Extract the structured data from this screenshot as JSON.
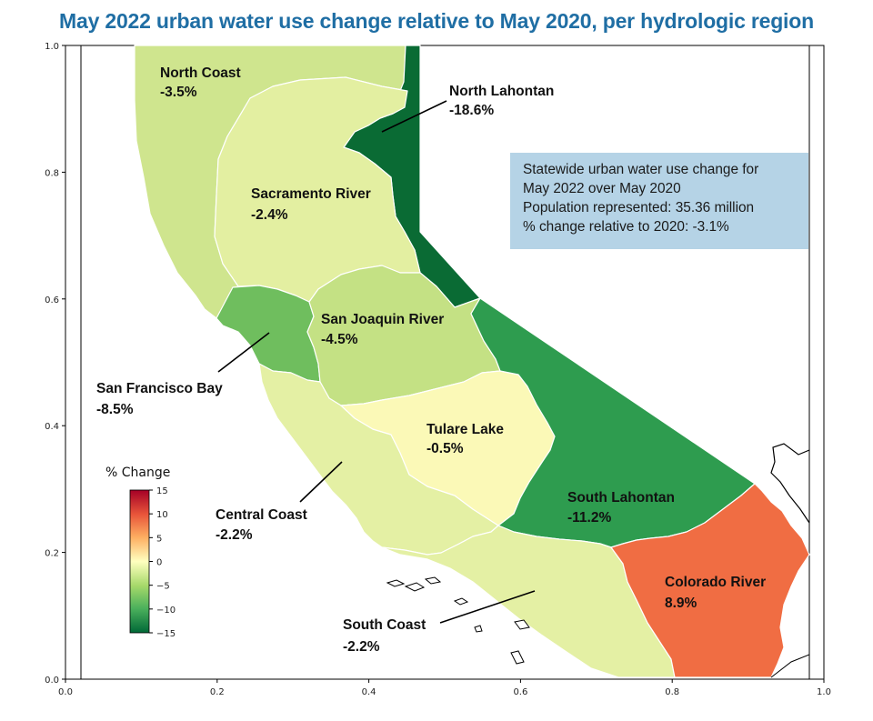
{
  "title": "May 2022 urban water use change relative to May 2020, per hydrologic region",
  "colors": {
    "title": "#1f6ea4",
    "infobox_bg": "#b5d3e6"
  },
  "infobox": {
    "line1": "Statewide urban water use change for",
    "line2": "May 2022 over May 2020",
    "line3": "Population represented: 35.36 million",
    "line4": "% change relative to 2020: -3.1%"
  },
  "chart_data": {
    "type": "choropleth",
    "xlim": [
      0.0,
      1.0
    ],
    "ylim": [
      0.0,
      1.0
    ],
    "x_ticks": [
      "0.0",
      "0.2",
      "0.4",
      "0.6",
      "0.8",
      "1.0"
    ],
    "y_ticks": [
      "0.0",
      "0.2",
      "0.4",
      "0.6",
      "0.8",
      "1.0"
    ],
    "regions": [
      {
        "name": "North Coast",
        "value": -3.5,
        "label": "-3.5%",
        "color": "#cfe58e"
      },
      {
        "name": "North Lahontan",
        "value": -18.6,
        "label": "-18.6%",
        "color": "#0a6b34"
      },
      {
        "name": "Sacramento River",
        "value": -2.4,
        "label": "-2.4%",
        "color": "#e3efa1"
      },
      {
        "name": "San Joaquin River",
        "value": -4.5,
        "label": "-4.5%",
        "color": "#c4e184"
      },
      {
        "name": "San Francisco Bay",
        "value": -8.5,
        "label": "-8.5%",
        "color": "#6fbe5e"
      },
      {
        "name": "Central Coast",
        "value": -2.2,
        "label": "-2.2%",
        "color": "#e4f0a4"
      },
      {
        "name": "Tulare Lake",
        "value": -0.5,
        "label": "-0.5%",
        "color": "#fbf9b7"
      },
      {
        "name": "South Lahontan",
        "value": -11.2,
        "label": "-11.2%",
        "color": "#2e9c4f"
      },
      {
        "name": "South Coast",
        "value": -2.2,
        "label": "-2.2%",
        "color": "#e4f0a4"
      },
      {
        "name": "Colorado River",
        "value": 8.9,
        "label": "8.9%",
        "color": "#f06d43"
      }
    ],
    "colorbar": {
      "title": "% Change",
      "ticks": [
        "15",
        "10",
        "5",
        "0",
        "−5",
        "−10",
        "−15"
      ],
      "range": [
        -15,
        15
      ],
      "colormap": "RdYlGn"
    }
  }
}
